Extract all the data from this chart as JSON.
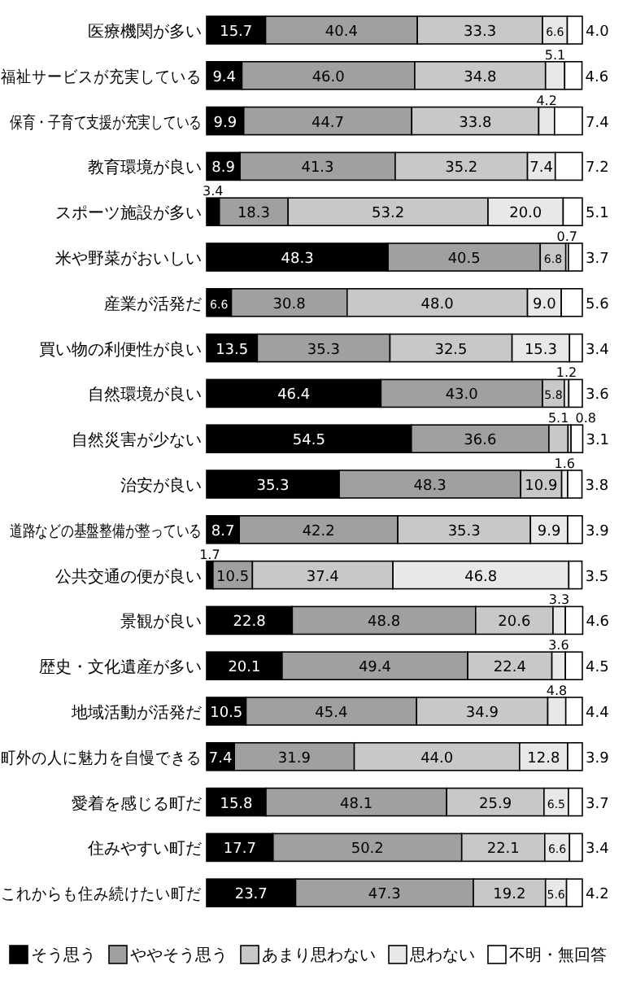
{
  "chart_data": {
    "type": "bar",
    "orientation": "horizontal",
    "stacked": true,
    "legend": "bottom",
    "xlim": [
      0,
      100
    ],
    "categories": [
      "医療機関が多い",
      "福祉サービスが充実している",
      "保育・子育て支援が充実している",
      "教育環境が良い",
      "スポーツ施設が多い",
      "米や野菜がおいしい",
      "産業が活発だ",
      "買い物の利便性が良い",
      "自然環境が良い",
      "自然災害が少ない",
      "治安が良い",
      "道路などの基盤整備が整っている",
      "公共交通の便が良い",
      "景観が良い",
      "歴史・文化遺産が多い",
      "地域活動が活発だ",
      "町外の人に魅力を自慢できる",
      "愛着を感じる町だ",
      "住みやすい町だ",
      "これからも住み続けたい町だ"
    ],
    "series": [
      {
        "name": "そう思う",
        "color": "#000000",
        "values": [
          15.7,
          9.4,
          9.9,
          8.9,
          3.4,
          48.3,
          6.6,
          13.5,
          46.4,
          54.5,
          35.3,
          8.7,
          1.7,
          22.8,
          20.1,
          10.5,
          7.4,
          15.8,
          17.7,
          23.7
        ],
        "value_labels": [
          "15.7",
          "9.4",
          "9.9",
          "8.9",
          "3.4",
          "48.3",
          "6.6",
          "13.5",
          "46.4",
          "54.5",
          "35.3",
          "8.7",
          "1.7",
          "22.8",
          "20.1",
          "10.5",
          "7.4",
          "15.8",
          "17.7",
          "23.7"
        ]
      },
      {
        "name": "ややそう思う",
        "color": "#a0a0a0",
        "values": [
          40.4,
          46.0,
          44.7,
          41.3,
          18.3,
          40.5,
          30.8,
          35.3,
          43.0,
          36.6,
          48.3,
          42.2,
          10.5,
          48.8,
          49.4,
          45.4,
          31.9,
          48.1,
          50.2,
          47.3
        ],
        "value_labels": [
          "40.4",
          "46.0",
          "44.7",
          "41.3",
          "18.3",
          "40.5",
          "30.8",
          "35.3",
          "43.0",
          "36.6",
          "48.3",
          "42.2",
          "10.5",
          "48.8",
          "49.4",
          "45.4",
          "31.9",
          "48.1",
          "50.2",
          "47.3"
        ]
      },
      {
        "name": "あまり思わない",
        "color": "#c8c8c8",
        "values": [
          33.3,
          34.8,
          33.8,
          35.2,
          53.2,
          6.8,
          48.0,
          32.5,
          5.8,
          5.1,
          10.9,
          35.3,
          37.4,
          20.6,
          22.4,
          34.9,
          44.0,
          25.9,
          22.1,
          19.2
        ],
        "value_labels": [
          "33.3",
          "34.8",
          "33.8",
          "35.2",
          "53.2",
          "6.8",
          "48.0",
          "32.5",
          "5.8",
          "5.1",
          "10.9",
          "35.3",
          "37.4",
          "20.6",
          "22.4",
          "34.9",
          "44.0",
          "25.9",
          "22.1",
          "19.2"
        ]
      },
      {
        "name": "思わない",
        "color": "#e8e8e8",
        "values": [
          6.6,
          5.1,
          4.2,
          7.4,
          20.0,
          0.7,
          9.0,
          15.3,
          1.2,
          0.8,
          1.6,
          9.9,
          46.8,
          3.3,
          3.6,
          4.8,
          12.8,
          6.5,
          6.6,
          5.6
        ],
        "value_labels": [
          "6.6",
          "5.1",
          "4.2",
          "7.4",
          "20.0",
          "0.7",
          "9.0",
          "15.3",
          "1.2",
          "0.8",
          "1.6",
          "9.9",
          "46.8",
          "3.3",
          "3.6",
          "4.8",
          "12.8",
          "6.5",
          "6.6",
          "5.6"
        ]
      },
      {
        "name": "不明・無回答",
        "color": "#ffffff",
        "values": [
          4.0,
          4.6,
          7.4,
          7.2,
          5.1,
          3.7,
          5.6,
          3.4,
          3.6,
          3.1,
          3.8,
          3.9,
          3.5,
          4.6,
          4.5,
          4.4,
          3.9,
          3.7,
          3.4,
          4.2
        ],
        "value_labels": [
          "4.0",
          "4.6",
          "7.4",
          "7.2",
          "5.1",
          "3.7",
          "5.6",
          "3.4",
          "3.6",
          "3.1",
          "3.8",
          "3.9",
          "3.5",
          "4.6",
          "4.5",
          "4.4",
          "3.9",
          "3.7",
          "3.4",
          "4.2"
        ]
      }
    ]
  }
}
